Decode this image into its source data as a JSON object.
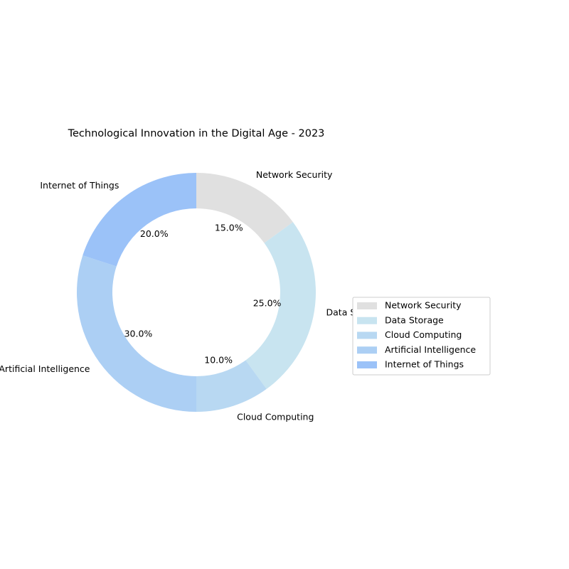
{
  "chart_data": {
    "type": "pie",
    "variant": "donut",
    "title": "Technological Innovation in the Digital Age - 2023",
    "slices": [
      {
        "label": "Network Security",
        "value": 15.0,
        "pct_label": "15.0%",
        "color": "#e0e0e0"
      },
      {
        "label": "Data Storage",
        "value": 25.0,
        "pct_label": "25.0%",
        "color": "#c8e4f0"
      },
      {
        "label": "Cloud Computing",
        "value": 10.0,
        "pct_label": "10.0%",
        "color": "#b8d8f2"
      },
      {
        "label": "Artificial Intelligence",
        "value": 30.0,
        "pct_label": "30.0%",
        "color": "#accff4"
      },
      {
        "label": "Internet of Things",
        "value": 20.0,
        "pct_label": "20.0%",
        "color": "#9bc2f8"
      }
    ],
    "start_angle_deg": 90,
    "direction": "clockwise",
    "legend": {
      "placement": "right"
    }
  }
}
